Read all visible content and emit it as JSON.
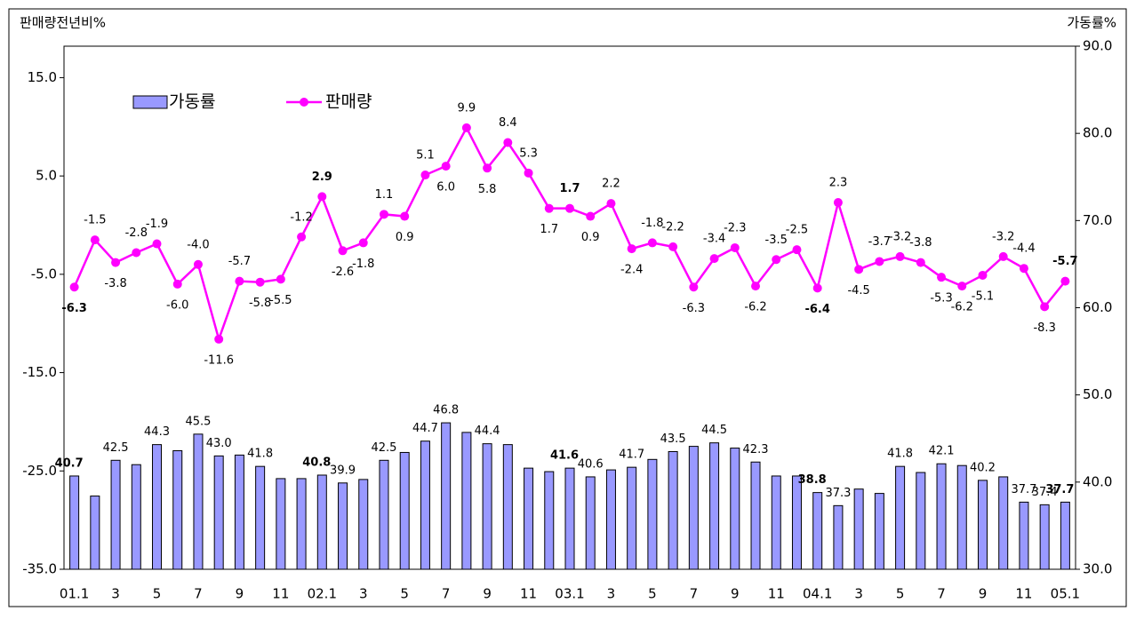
{
  "chart_data": {
    "type": "bar+line",
    "y_axis_label": "판매량전년비%",
    "y2_axis_label": "가동률%",
    "categories": [
      "01.1",
      null,
      "3",
      null,
      "5",
      null,
      "7",
      null,
      "9",
      null,
      "11",
      null,
      "02.1",
      null,
      "3",
      null,
      "5",
      null,
      "7",
      null,
      "9",
      null,
      "11",
      null,
      "03.1",
      null,
      "3",
      null,
      "5",
      null,
      "7",
      null,
      "9",
      null,
      "11",
      null,
      "04.1",
      null,
      "3",
      null,
      "5",
      null,
      "7",
      null,
      "9",
      null,
      "11",
      null,
      "05.1"
    ],
    "ylim": [
      -35,
      18.2
    ],
    "yticks": [
      {
        "value": -35,
        "label": "-35.0"
      },
      {
        "value": -25,
        "label": "-25.0"
      },
      {
        "value": -15,
        "label": "-15.0"
      },
      {
        "value": -5,
        "label": "-5.0"
      },
      {
        "value": 5,
        "label": "5.0"
      },
      {
        "value": 15,
        "label": "15.0"
      }
    ],
    "y2lim": [
      30,
      90
    ],
    "y2ticks": [
      {
        "value": 30,
        "label": "30.0"
      },
      {
        "value": 40,
        "label": "40.0"
      },
      {
        "value": 50,
        "label": "50.0"
      },
      {
        "value": 60,
        "label": "60.0"
      },
      {
        "value": 70,
        "label": "70.0"
      },
      {
        "value": 80,
        "label": "80.0"
      },
      {
        "value": 90,
        "label": "90.0"
      }
    ],
    "legend": "top-left",
    "series": [
      {
        "name": "가동률",
        "type": "bar",
        "axis": "y2",
        "color": "#9999ff",
        "values": [
          40.7,
          38.4,
          42.5,
          42.0,
          44.3,
          43.6,
          45.5,
          43.0,
          43.1,
          41.8,
          40.4,
          40.4,
          40.8,
          39.9,
          40.3,
          42.5,
          43.4,
          44.7,
          46.8,
          45.7,
          44.4,
          44.3,
          41.6,
          41.2,
          41.6,
          40.6,
          41.4,
          41.7,
          42.6,
          43.5,
          44.1,
          44.5,
          43.9,
          42.3,
          40.7,
          40.7,
          38.8,
          37.3,
          39.2,
          38.7,
          41.8,
          41.1,
          42.1,
          41.9,
          40.2,
          40.6,
          37.7,
          37.4,
          37.7
        ],
        "value_labels": [
          "40.7",
          null,
          "42.5",
          null,
          "44.3",
          null,
          "45.5",
          "43.0",
          null,
          "41.8",
          null,
          null,
          "40.8",
          "39.9",
          null,
          "42.5",
          null,
          "44.7",
          "46.8",
          null,
          "44.4",
          null,
          null,
          null,
          "41.6",
          "40.6",
          null,
          "41.7",
          null,
          "43.5",
          null,
          "44.5",
          null,
          "42.3",
          null,
          null,
          "38.8",
          "37.3",
          null,
          null,
          "41.8",
          null,
          "42.1",
          null,
          "40.2",
          null,
          "37.7",
          "37.4",
          "37.7"
        ]
      },
      {
        "name": "판매량",
        "type": "line",
        "color": "#ff00ff",
        "values": [
          -6.3,
          -1.5,
          -3.8,
          -2.8,
          -1.9,
          -6.0,
          -4.0,
          -11.6,
          -5.7,
          -5.8,
          -5.5,
          -1.2,
          2.9,
          -2.6,
          -1.8,
          1.1,
          0.9,
          5.1,
          6.0,
          9.9,
          5.8,
          8.4,
          5.3,
          1.7,
          1.7,
          0.9,
          2.2,
          -2.4,
          -1.8,
          -2.2,
          -6.3,
          -3.4,
          -2.3,
          -6.2,
          -3.5,
          -2.5,
          -6.4,
          2.3,
          -4.5,
          -3.7,
          -3.2,
          -3.8,
          -5.3,
          -6.2,
          -5.1,
          -3.2,
          -4.4,
          -8.3,
          -5.7
        ]
      }
    ]
  }
}
